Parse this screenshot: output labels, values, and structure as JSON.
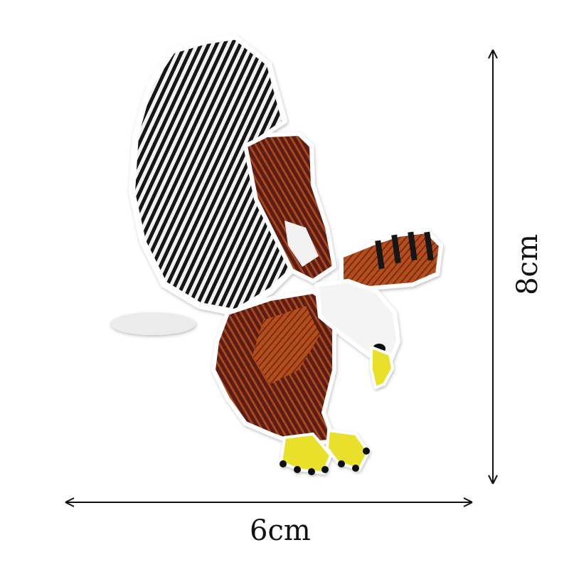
{
  "dimensions": {
    "width_label": "6cm",
    "height_label": "8cm"
  },
  "patch": {
    "subject": "eagle-embroidered-patch",
    "colors": {
      "black": "#111111",
      "white": "#f2f2f2",
      "dark_brown": "#5a1f12",
      "rust": "#b4501c",
      "yellow": "#e8e02a",
      "border": "#ffffff"
    }
  }
}
